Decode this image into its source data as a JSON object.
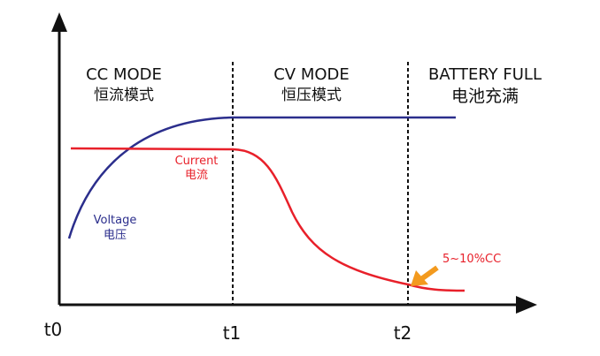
{
  "modes": [
    {
      "en": "CC MODE",
      "zh": "恒流模式"
    },
    {
      "en": "CV MODE",
      "zh": "恒压模式"
    },
    {
      "en": "BATTERY FULL",
      "zh": "电池充满"
    }
  ],
  "curves": {
    "current": {
      "en": "Current",
      "zh": "电流",
      "color": "#e8202a"
    },
    "voltage": {
      "en": "Voltage",
      "zh": "电压",
      "color": "#2b2e8c"
    }
  },
  "annotation": {
    "text": "5~10%CC",
    "color": "#e8202a",
    "arrow_color": "#f39a1e"
  },
  "time_labels": [
    "t0",
    "t1",
    "t2"
  ]
}
